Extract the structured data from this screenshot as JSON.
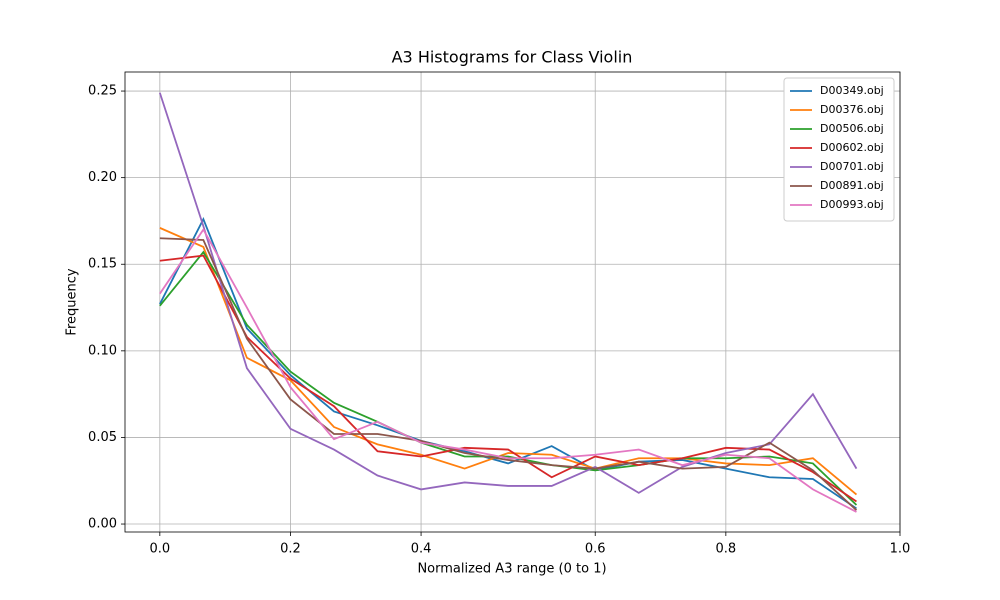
{
  "chart_data": {
    "type": "line",
    "title": "A3 Histograms for Class Violin",
    "xlabel": "Normalized A3 range (0 to 1)",
    "ylabel": "Frequency",
    "x": [
      0,
      1,
      2,
      3,
      4,
      5,
      6,
      7,
      8,
      9,
      10,
      11,
      12,
      13,
      14,
      15,
      16
    ],
    "xlim": [
      -0.8,
      17
    ],
    "xticks": [
      {
        "value": 0,
        "label": "0.0"
      },
      {
        "value": 3,
        "label": "0.2"
      },
      {
        "value": 6,
        "label": "0.4"
      },
      {
        "value": 10,
        "label": "0.6"
      },
      {
        "value": 13,
        "label": "0.8"
      },
      {
        "value": 17,
        "label": "1.0"
      }
    ],
    "ylim": [
      -0.0046,
      0.261
    ],
    "yticks": [
      {
        "value": 0,
        "label": "0.00"
      },
      {
        "value": 0.05,
        "label": "0.05"
      },
      {
        "value": 0.1,
        "label": "0.10"
      },
      {
        "value": 0.15,
        "label": "0.15"
      },
      {
        "value": 0.2,
        "label": "0.20"
      },
      {
        "value": 0.25,
        "label": "0.25"
      }
    ],
    "grid": true,
    "legend": "upper right",
    "series": [
      {
        "name": "D00349.obj",
        "color": "#1f77b4",
        "values": [
          0.127,
          0.176,
          0.113,
          0.086,
          0.065,
          0.057,
          0.048,
          0.042,
          0.035,
          0.045,
          0.031,
          0.036,
          0.037,
          0.032,
          0.027,
          0.026,
          0.009
        ]
      },
      {
        "name": "D00376.obj",
        "color": "#ff7f0e",
        "values": [
          0.171,
          0.16,
          0.096,
          0.083,
          0.056,
          0.046,
          0.04,
          0.032,
          0.041,
          0.04,
          0.032,
          0.038,
          0.038,
          0.035,
          0.034,
          0.038,
          0.017
        ]
      },
      {
        "name": "D00506.obj",
        "color": "#2ca02c",
        "values": [
          0.126,
          0.157,
          0.115,
          0.088,
          0.07,
          0.059,
          0.047,
          0.039,
          0.039,
          0.034,
          0.031,
          0.034,
          0.038,
          0.038,
          0.039,
          0.035,
          0.011
        ]
      },
      {
        "name": "D00602.obj",
        "color": "#d62728",
        "values": [
          0.152,
          0.155,
          0.108,
          0.084,
          0.068,
          0.042,
          0.039,
          0.044,
          0.043,
          0.027,
          0.039,
          0.034,
          0.038,
          0.044,
          0.043,
          0.03,
          0.013
        ]
      },
      {
        "name": "D00701.obj",
        "color": "#9467bd",
        "values": [
          0.249,
          0.172,
          0.09,
          0.055,
          0.043,
          0.028,
          0.02,
          0.024,
          0.022,
          0.022,
          0.033,
          0.018,
          0.033,
          0.041,
          0.046,
          0.075,
          0.032
        ]
      },
      {
        "name": "D00891.obj",
        "color": "#8c564b",
        "values": [
          0.165,
          0.164,
          0.107,
          0.072,
          0.052,
          0.052,
          0.048,
          0.041,
          0.037,
          0.034,
          0.032,
          0.036,
          0.032,
          0.033,
          0.047,
          0.031,
          0.008
        ]
      },
      {
        "name": "D00993.obj",
        "color": "#e377c2",
        "values": [
          0.133,
          0.17,
          0.125,
          0.079,
          0.049,
          0.059,
          0.047,
          0.043,
          0.038,
          0.038,
          0.04,
          0.043,
          0.034,
          0.04,
          0.038,
          0.02,
          0.007
        ]
      }
    ]
  }
}
